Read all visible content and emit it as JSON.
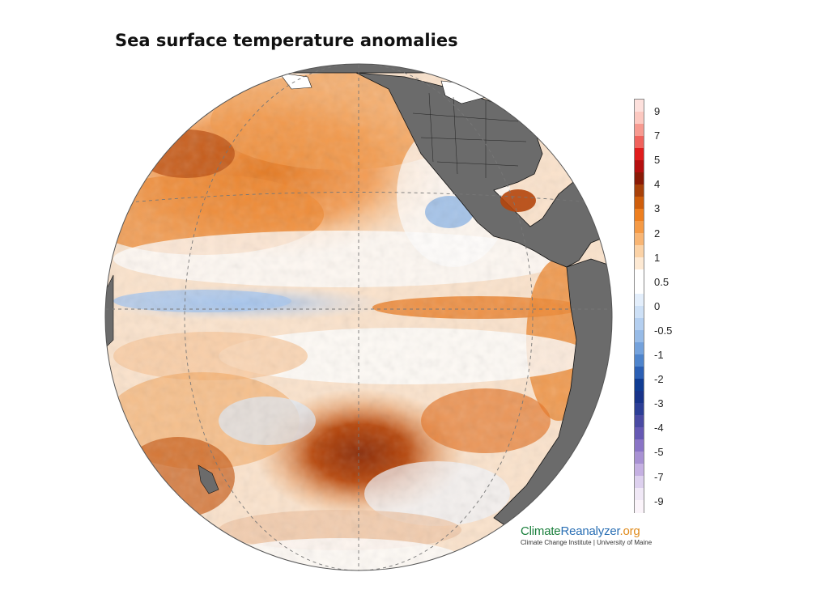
{
  "title": "Sea surface temperature anomalies",
  "map": {
    "projection": "orthographic",
    "ocean_palette": "anomaly",
    "land_color": "#6b6b6b",
    "gridlines": "dashed"
  },
  "colorbar": {
    "labels": [
      "9",
      "7",
      "5",
      "4",
      "3",
      "2",
      "1",
      "0.5",
      "0",
      "-0.5",
      "-1",
      "-2",
      "-3",
      "-4",
      "-5",
      "-7",
      "-9"
    ],
    "colors": [
      "#fde0dc",
      "#fcc8c0",
      "#f79a90",
      "#f0625c",
      "#e01c1c",
      "#b40f0f",
      "#8a1a06",
      "#a8410a",
      "#cf5e0c",
      "#ee7f1f",
      "#f59a45",
      "#f8b574",
      "#fbd2a6",
      "#fde9d3",
      "#ffffff",
      "#ffffff",
      "#e3eefb",
      "#cde0f6",
      "#b4cff0",
      "#97bbe7",
      "#74a2dc",
      "#4e84cc",
      "#2b5fb4",
      "#103c93",
      "#18338a",
      "#2c3e96",
      "#4a4aa3",
      "#6659b4",
      "#8a74c6",
      "#a891d3",
      "#c5b0e2",
      "#ddd0ee",
      "#f0e8f6",
      "#fbf4fa"
    ]
  },
  "branding": {
    "name_part1": "Climate",
    "name_part2": "Reanalyzer",
    "name_part3": ".org",
    "subtitle": "Climate Change Institute | University of Maine"
  }
}
